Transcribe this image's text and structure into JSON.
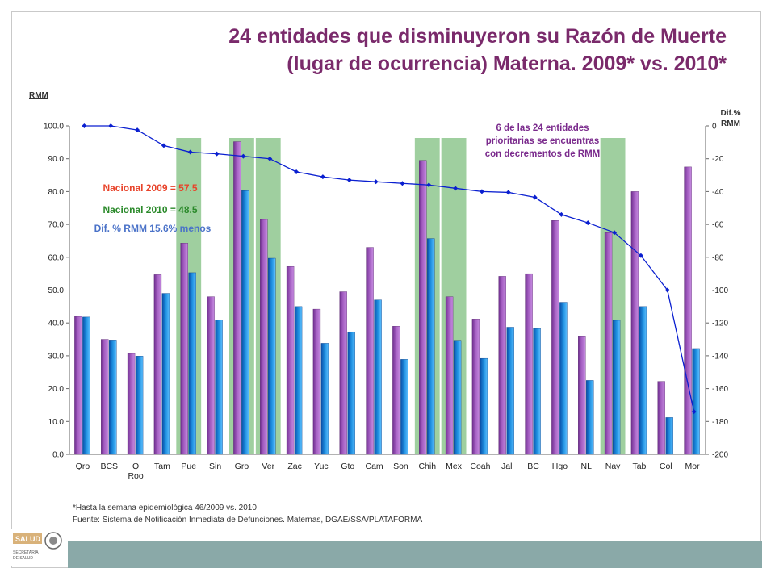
{
  "title_line1": "24 entidades que disminuyeron su Razón de Muerte",
  "title_line2": "(lugar de ocurrencia) Materna.  2009*  vs.  2010*",
  "note1": "*Hasta la semana epidemiológica 46/2009 vs. 2010",
  "note2": "Fuente:  Sistema de Notificación Inmediata de Defunciones. Maternas, DGAE/SSA/PLATAFORMA",
  "logo_text": "SALUD",
  "logo_sub1": "SECRETARÍA",
  "logo_sub2": "DE SALUD",
  "chart_data": {
    "type": "bar",
    "categories": [
      "Qro",
      "BCS",
      "Q Roo",
      "Tam",
      "Pue",
      "Sin",
      "Gro",
      "Ver",
      "Zac",
      "Yuc",
      "Gto",
      "Cam",
      "Son",
      "Chih",
      "Mex",
      "Coah",
      "Jal",
      "BC",
      "Hgo",
      "NL",
      "Nay",
      "Tab",
      "Col",
      "Mor"
    ],
    "series": [
      {
        "values": [
          42.0,
          35.0,
          30.7,
          54.7,
          64.3,
          48.0,
          95.2,
          71.5,
          57.2,
          44.2,
          49.5,
          63.0,
          39.0,
          89.5,
          48.0,
          41.2,
          54.2,
          55.0,
          71.2,
          35.8,
          67.5,
          80.0,
          22.2,
          87.5
        ]
      },
      {
        "values": [
          41.8,
          34.8,
          29.9,
          49.0,
          55.3,
          40.9,
          80.3,
          59.7,
          45.0,
          33.8,
          37.3,
          47.0,
          28.9,
          65.7,
          34.7,
          29.2,
          38.7,
          38.3,
          46.3,
          22.5,
          40.8,
          45.0,
          11.2,
          32.2
        ]
      },
      {
        "axis": "right",
        "values": [
          0,
          0,
          -2.5,
          -12,
          -16,
          -17,
          -18.5,
          -20,
          -28,
          -31,
          -33,
          -34,
          -35,
          -36,
          -38,
          -40,
          -40.5,
          -43.5,
          -54,
          -59,
          -65,
          -79,
          -100,
          -174
        ]
      }
    ],
    "ylabel": "RMM",
    "y2label": "Dif.% RMM",
    "ylim": [
      0,
      100
    ],
    "y2lim": [
      -200,
      0
    ],
    "yticks": [
      "0.0",
      "10.0",
      "20.0",
      "30.0",
      "40.0",
      "50.0",
      "60.0",
      "70.0",
      "80.0",
      "90.0",
      "100.0"
    ],
    "y2ticks": [
      "-200",
      "-180",
      "-160",
      "-140",
      "-120",
      "-100",
      "-80",
      "-60",
      "-40",
      "-20",
      "0"
    ],
    "highlighted": [
      "Pue",
      "Gro",
      "Ver",
      "Chih",
      "Mex",
      "Nay"
    ],
    "annotation_priority": [
      "6 de las 24 entidades",
      "prioritarias se encuentras",
      "con decrementos de RMM"
    ],
    "annotation_nacional_2009": "Nacional  2009 = 57.5",
    "annotation_nacional_2010": "Nacional  2010 = 48.5",
    "annotation_dif": "Dif. % RMM 15.6% menos",
    "colors": {
      "bar2009": "#a45ec2",
      "bar2010": "#1e8fe0",
      "line": "#0a1fd0",
      "highlight": "#9fcf9f",
      "title": "#7a2a6b",
      "annotation": "#7a2a8c",
      "nac2009": "#e8432a",
      "nac2010": "#2b8a2b",
      "dif": "#4a72c8"
    },
    "grid": false
  }
}
